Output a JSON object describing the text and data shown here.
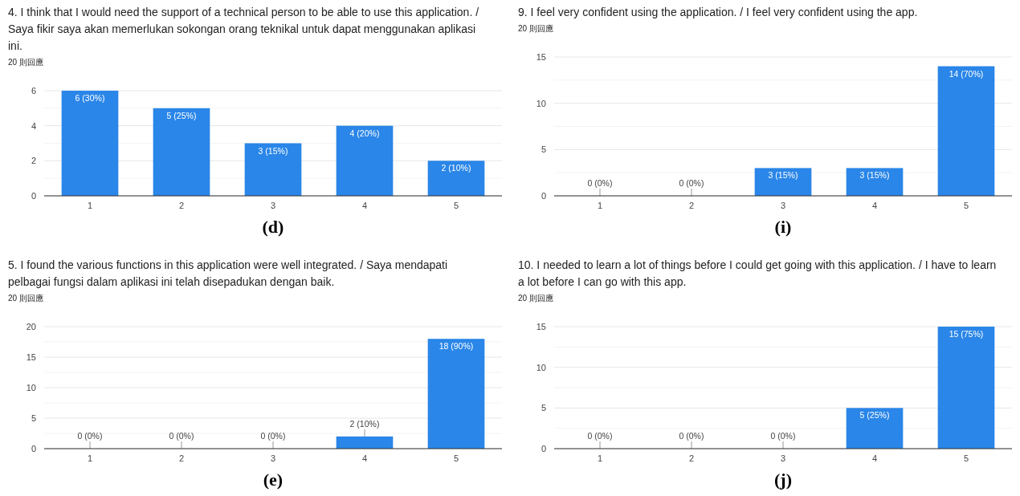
{
  "chart_data": [
    {
      "type": "bar",
      "title": "4. I think that I would need the support of a technical person to be able to use this application. / Saya fikir saya akan memerlukan sokongan orang teknikal untuk dapat menggunakan aplikasi ini.",
      "subtitle": "20 則回應",
      "categories": [
        "1",
        "2",
        "3",
        "4",
        "5"
      ],
      "values": [
        6,
        5,
        3,
        4,
        2
      ],
      "value_labels": [
        "6 (30%)",
        "5 (25%)",
        "3 (15%)",
        "4 (20%)",
        "2 (10%)"
      ],
      "color": "#2a86e8",
      "ylim": [
        0,
        6
      ],
      "yticks": [
        0,
        {
          "value": 1,
          "label": null
        },
        2,
        {
          "value": 3,
          "label": null
        },
        4,
        {
          "value": 5,
          "label": null
        },
        6
      ],
      "grid": true,
      "annotations": [
        "(d)"
      ]
    },
    {
      "type": "bar",
      "title": "9. I feel very confident using the application. / I feel very confident using the app.",
      "subtitle": "20 則回應",
      "categories": [
        "1",
        "2",
        "3",
        "4",
        "5"
      ],
      "values": [
        0,
        0,
        3,
        3,
        14
      ],
      "value_labels": [
        "0 (0%)",
        "0 (0%)",
        "3 (15%)",
        "3 (15%)",
        "14 (70%)"
      ],
      "color": "#2a86e8",
      "ylim": [
        0,
        15
      ],
      "yticks": [
        0,
        {
          "value": 2.5,
          "label": null
        },
        5,
        {
          "value": 7.5,
          "label": null
        },
        10,
        {
          "value": 12.5,
          "label": null
        },
        15
      ],
      "grid": true,
      "annotations": [
        "(i)"
      ]
    },
    {
      "type": "bar",
      "title": "5. I found the various functions in this application were well integrated. /  Saya mendapati pelbagai fungsi dalam aplikasi ini telah disepadukan dengan baik.",
      "subtitle": "20 則回應",
      "categories": [
        "1",
        "2",
        "3",
        "4",
        "5"
      ],
      "values": [
        0,
        0,
        0,
        2,
        18
      ],
      "value_labels": [
        "0 (0%)",
        "0 (0%)",
        "0 (0%)",
        "2 (10%)",
        "18 (90%)"
      ],
      "color": "#2a86e8",
      "ylim": [
        0,
        20
      ],
      "yticks": [
        0,
        {
          "value": 2.5,
          "label": null
        },
        5,
        {
          "value": 7.5,
          "label": null
        },
        10,
        {
          "value": 12.5,
          "label": null
        },
        15,
        {
          "value": 17.5,
          "label": null
        },
        20
      ],
      "grid": true,
      "annotations": [
        "(e)"
      ]
    },
    {
      "type": "bar",
      "title": "10. I needed to learn a lot of things before I could get going with this application. / I have to learn a lot before I can go with this app.",
      "subtitle": "20 則回應",
      "categories": [
        "1",
        "2",
        "3",
        "4",
        "5"
      ],
      "values": [
        0,
        0,
        0,
        5,
        15
      ],
      "value_labels": [
        "0 (0%)",
        "0 (0%)",
        "0 (0%)",
        "5 (25%)",
        "15 (75%)"
      ],
      "color": "#2a86e8",
      "ylim": [
        0,
        15
      ],
      "yticks": [
        0,
        {
          "value": 2.5,
          "label": null
        },
        5,
        {
          "value": 7.5,
          "label": null
        },
        10,
        {
          "value": 12.5,
          "label": null
        },
        15
      ],
      "grid": true,
      "annotations": [
        "(j)"
      ]
    }
  ]
}
